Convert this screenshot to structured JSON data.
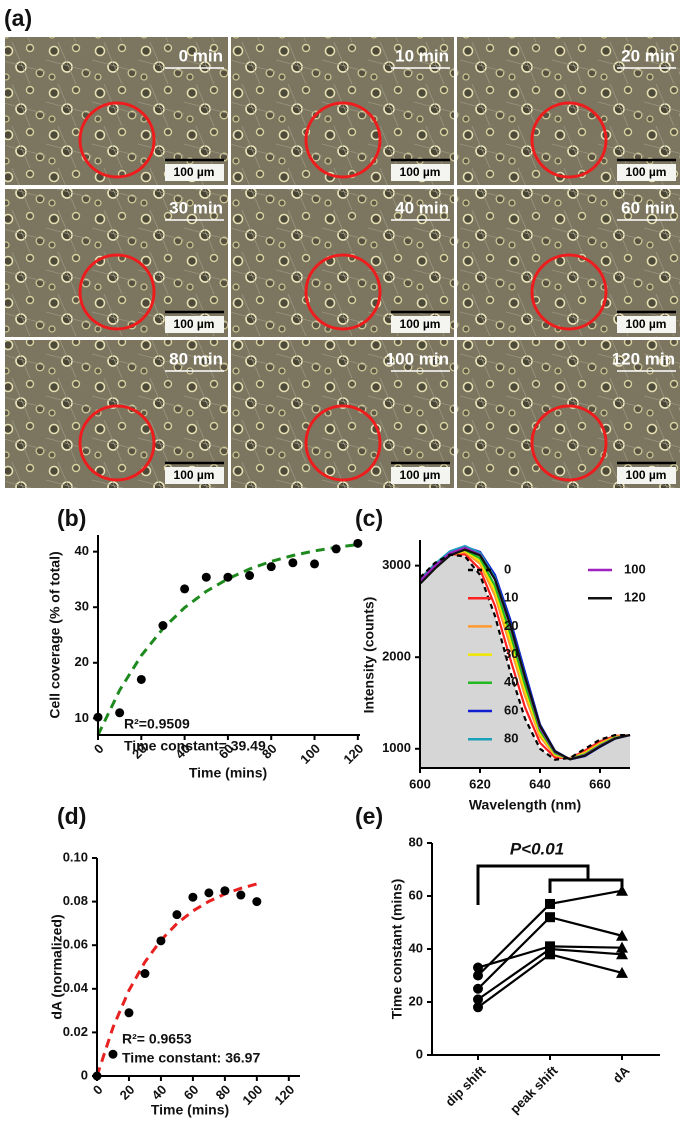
{
  "images": {
    "panel": "(a)",
    "scale_bar": "100 µm",
    "frames": [
      "0 min",
      "10 min",
      "20 min",
      "30 min",
      "40 min",
      "60 min",
      "80 min",
      "100 min",
      "120 min"
    ]
  },
  "chart_data": [
    {
      "panel": "(b)",
      "type": "scatter",
      "xlabel": "Time (mins)",
      "ylabel": "Cell coverage (% of total)",
      "xlim": [
        0,
        121
      ],
      "ylim": [
        7,
        43
      ],
      "xticks": [
        0,
        20,
        40,
        60,
        80,
        100,
        120
      ],
      "yticks": [
        10,
        20,
        30,
        40
      ],
      "series": [
        {
          "color": "#000000",
          "x": [
            0,
            10,
            20,
            30,
            40,
            50,
            60,
            70,
            80,
            90,
            100,
            110,
            120
          ],
          "values": [
            10.2,
            11,
            17,
            26.7,
            33.3,
            35.4,
            35.4,
            35.7,
            37.3,
            38,
            37.8,
            40.5,
            41.5
          ]
        }
      ],
      "fit": {
        "color": "#1e8a1e",
        "x": [
          0,
          10,
          20,
          30,
          40,
          50,
          60,
          70,
          80,
          90,
          100,
          110,
          120
        ],
        "values": [
          7.0,
          15.07,
          21.31,
          26.16,
          29.93,
          32.85,
          35.12,
          36.88,
          38.25,
          39.31,
          40.14,
          40.78,
          41.28
        ]
      },
      "annotations": [
        "R²=0.9509",
        "Time constant= 39.49"
      ]
    },
    {
      "panel": "(c)",
      "type": "line",
      "xlabel": "Wavelength (nm)",
      "ylabel": "Intensity (counts)",
      "xlim": [
        600,
        670
      ],
      "ylim": [
        790,
        3280
      ],
      "xticks": [
        600,
        620,
        640,
        660
      ],
      "yticks": [
        1000,
        2000,
        3000
      ],
      "x": [
        600,
        605,
        610,
        615,
        620,
        625,
        630,
        635,
        640,
        645,
        650,
        655,
        660,
        665,
        670
      ],
      "series": [
        {
          "name": "0",
          "color": "#000000",
          "dash": true,
          "fill": "#d6d6d6",
          "values": [
            2870,
            3030,
            3120,
            3100,
            2900,
            2450,
            1850,
            1330,
            1000,
            880,
            900,
            1000,
            1100,
            1150,
            1150
          ]
        },
        {
          "name": "10",
          "color": "#ff2020",
          "values": [
            2856,
            3018,
            3122,
            3124,
            2960,
            2560,
            1990,
            1454,
            1066,
            904,
            896,
            980,
            1080,
            1140,
            1150
          ]
        },
        {
          "name": "20",
          "color": "#ff9a30",
          "values": [
            2842,
            3006,
            3124,
            3148,
            3020,
            2670,
            2130,
            1578,
            1132,
            928,
            892,
            960,
            1060,
            1130,
            1150
          ]
        },
        {
          "name": "30",
          "color": "#f2e600",
          "values": [
            2835,
            3000,
            3125,
            3160,
            3050,
            2725,
            2200,
            1640,
            1165,
            940,
            890,
            950,
            1050,
            1125,
            1150
          ]
        },
        {
          "name": "40",
          "color": "#22b822",
          "values": [
            2828,
            2994,
            3126,
            3172,
            3080,
            2780,
            2270,
            1702,
            1198,
            952,
            888,
            940,
            1040,
            1120,
            1150
          ]
        },
        {
          "name": "60",
          "color": "#1020d0",
          "values": [
            2824,
            2992,
            3138,
            3206,
            3150,
            2900,
            2420,
            1836,
            1264,
            976,
            884,
            920,
            1020,
            1110,
            1150
          ]
        },
        {
          "name": "80",
          "color": "#1aa0b8",
          "values": [
            2851,
            3018,
            3157,
            3214,
            3140,
            2865,
            2370,
            1794,
            1231,
            964,
            886,
            930,
            1030,
            1115,
            1150
          ]
        },
        {
          "name": "100",
          "color": "#a020c0",
          "values": [
            2831,
            2998,
            3137,
            3194,
            3120,
            2845,
            2350,
            1774,
            1231,
            964,
            886,
            930,
            1030,
            1115,
            1150
          ]
        },
        {
          "name": "120",
          "color": "#111111",
          "values": [
            2801,
            2968,
            3112,
            3175,
            3112,
            2852,
            2366,
            1785,
            1251,
            971,
            885,
            924,
            1024,
            1112,
            1150
          ]
        }
      ]
    },
    {
      "panel": "(d)",
      "type": "scatter",
      "xlabel": "Time (mins)",
      "ylabel": "dA (normalized)",
      "xlim": [
        0,
        127
      ],
      "ylim": [
        0,
        0.1
      ],
      "xticks": [
        0,
        20,
        40,
        60,
        80,
        100,
        120
      ],
      "yticks": [
        0,
        0.02,
        0.04,
        0.06,
        0.08,
        {
          "value": 0.1,
          "label": "0.10"
        }
      ],
      "series": [
        {
          "color": "#000000",
          "x": [
            0,
            10,
            20,
            30,
            40,
            50,
            60,
            70,
            80,
            90,
            100
          ],
          "values": [
            0,
            0.01,
            0.029,
            0.047,
            0.062,
            0.074,
            0.082,
            0.084,
            0.085,
            0.083,
            0.08
          ]
        }
      ],
      "fit": {
        "color": "#e82020",
        "x": [
          0,
          10,
          20,
          30,
          40,
          50,
          60,
          70,
          80,
          90,
          100
        ],
        "values": [
          0,
          0.0223,
          0.0393,
          0.0523,
          0.0623,
          0.0699,
          0.0757,
          0.0801,
          0.0835,
          0.0861,
          0.0881
        ]
      },
      "annotations": [
        "R²= 0.9653",
        "Time constant: 36.97"
      ]
    },
    {
      "panel": "(e)",
      "type": "line",
      "ylabel": "Time constant (mins)",
      "ylim": [
        0,
        80
      ],
      "yticks": [
        0,
        20,
        40,
        60,
        80
      ],
      "categories": [
        "dip shift",
        "peak shift",
        "dA"
      ],
      "markers": [
        "circle",
        "square",
        "triangle"
      ],
      "color": "#000000",
      "series": [
        {
          "values": [
            30,
            57,
            62
          ]
        },
        {
          "values": [
            25,
            52,
            45
          ]
        },
        {
          "values": [
            33,
            41,
            40.5
          ]
        },
        {
          "values": [
            21,
            40,
            38
          ]
        },
        {
          "values": [
            18,
            38,
            31
          ]
        }
      ],
      "annotations": [
        "P<0.01"
      ]
    }
  ]
}
